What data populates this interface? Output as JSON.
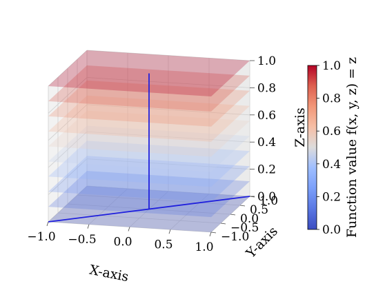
{
  "chart_data": {
    "type": "surface-3d",
    "x": {
      "label": "X-axis",
      "range": [
        -1,
        1
      ],
      "ticks": [
        -1.0,
        -0.5,
        0.0,
        0.5,
        1.0
      ],
      "tick_labels": [
        "−1.0",
        "−0.5",
        "0.0",
        "0.5",
        "1.0"
      ]
    },
    "y": {
      "label": "Y-axis",
      "range": [
        -1,
        1
      ],
      "ticks": [
        -1.0,
        -0.5,
        0.0,
        0.5,
        1.0
      ],
      "tick_labels": [
        "−1.0",
        "−0.5",
        "0.0",
        "0.5",
        "1.0"
      ]
    },
    "z": {
      "label": "Z-axis",
      "range": [
        0,
        1
      ],
      "ticks": [
        0.0,
        0.2,
        0.4,
        0.6,
        0.8,
        1.0
      ],
      "tick_labels": [
        "0.0",
        "0.2",
        "0.4",
        "0.6",
        "0.8",
        "1.0"
      ]
    },
    "surfaces": {
      "description_of_values": "horizontal planes z = constant over x,y in [-1,1]",
      "z_levels": [
        0.0,
        0.1111,
        0.2222,
        0.3333,
        0.4444,
        0.5556,
        0.6667,
        0.7778,
        0.8889,
        1.0
      ]
    },
    "lines": [
      {
        "from": [
          -1,
          -1,
          0
        ],
        "to": [
          1,
          1,
          0
        ]
      },
      {
        "from": [
          0,
          0,
          0
        ],
        "to": [
          0,
          0,
          1
        ]
      }
    ],
    "line_color": "#1f1fdd",
    "colormap": "coolwarm",
    "colorbar": {
      "label": "Function value f(x, y, z) = z",
      "range": [
        0,
        1
      ],
      "ticks": [
        0.0,
        0.2,
        0.4,
        0.6,
        0.8,
        1.0
      ],
      "tick_labels": [
        "0.0",
        "0.2",
        "0.4",
        "0.6",
        "0.8",
        "1.0"
      ]
    },
    "grid": true
  }
}
